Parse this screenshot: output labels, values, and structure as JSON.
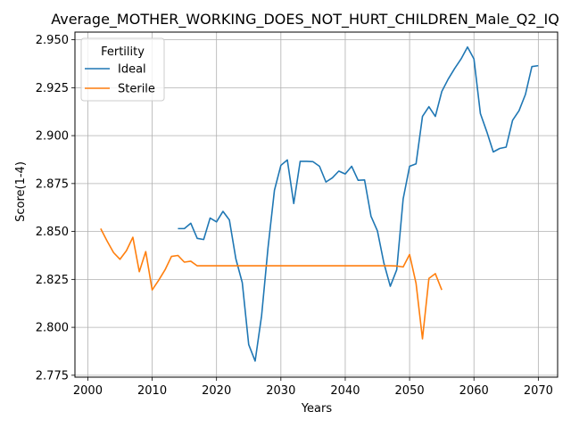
{
  "chart_data": {
    "type": "line",
    "title": "Average_MOTHER_WORKING_DOES_NOT_HURT_CHILDREN_Male_Q2_IQ",
    "xlabel": "Years",
    "ylabel": "Score(1-4)",
    "xlim": [
      1998,
      2073
    ],
    "ylim": [
      2.774,
      2.954
    ],
    "xticks": [
      2000,
      2010,
      2020,
      2030,
      2040,
      2050,
      2060,
      2070
    ],
    "yticks": [
      2.775,
      2.8,
      2.825,
      2.85,
      2.875,
      2.9,
      2.925,
      2.95
    ],
    "xtick_labels": [
      "2000",
      "2010",
      "2020",
      "2030",
      "2040",
      "2050",
      "2060",
      "2070"
    ],
    "ytick_labels": [
      "2.775",
      "2.800",
      "2.825",
      "2.850",
      "2.875",
      "2.900",
      "2.925",
      "2.950"
    ],
    "grid": true,
    "legend": {
      "title": "Fertility",
      "placement": "top-left"
    },
    "series": [
      {
        "name": "Ideal",
        "color": "#1f77b4",
        "x": [
          2014,
          2015,
          2016,
          2017,
          2018,
          2019,
          2020,
          2021,
          2022,
          2023,
          2024,
          2025,
          2026,
          2027,
          2028,
          2029,
          2030,
          2031,
          2032,
          2033,
          2034,
          2035,
          2036,
          2037,
          2038,
          2039,
          2040,
          2041,
          2042,
          2043,
          2044,
          2045,
          2046,
          2047,
          2048,
          2049,
          2050,
          2051,
          2052,
          2053,
          2054,
          2055,
          2056,
          2057,
          2058,
          2059,
          2060,
          2061,
          2062,
          2063,
          2064,
          2065,
          2066,
          2067,
          2068,
          2069,
          2070
        ],
        "values": [
          2.8515,
          2.8515,
          2.8543,
          2.8464,
          2.8458,
          2.857,
          2.855,
          2.8605,
          2.856,
          2.8358,
          2.8233,
          2.791,
          2.7824,
          2.806,
          2.8415,
          2.8715,
          2.8845,
          2.8873,
          2.8646,
          2.8866,
          2.8866,
          2.8864,
          2.884,
          2.8758,
          2.878,
          2.8815,
          2.88,
          2.884,
          2.8767,
          2.8769,
          2.858,
          2.8503,
          2.8336,
          2.8214,
          2.83,
          2.867,
          2.884,
          2.8853,
          2.91,
          2.9151,
          2.91,
          2.923,
          2.9295,
          2.935,
          2.94,
          2.9462,
          2.94,
          2.9115,
          2.902,
          2.8915,
          2.8933,
          2.894,
          2.908,
          2.913,
          2.9215,
          2.936,
          2.9365
        ]
      },
      {
        "name": "Sterile",
        "color": "#ff7f0e",
        "x": [
          2002,
          2003,
          2004,
          2005,
          2006,
          2007,
          2008,
          2009,
          2010,
          2011,
          2012,
          2013,
          2014,
          2015,
          2016,
          2017,
          2018,
          2019,
          2020,
          2021,
          2022,
          2023,
          2024,
          2025,
          2026,
          2027,
          2028,
          2029,
          2030,
          2031,
          2032,
          2033,
          2034,
          2035,
          2036,
          2037,
          2038,
          2039,
          2040,
          2041,
          2042,
          2043,
          2044,
          2045,
          2046,
          2047,
          2048,
          2049,
          2050,
          2051,
          2052,
          2053,
          2054,
          2055
        ],
        "values": [
          2.8515,
          2.845,
          2.839,
          2.8355,
          2.84,
          2.847,
          2.829,
          2.8395,
          2.8195,
          2.8245,
          2.83,
          2.837,
          2.8375,
          2.834,
          2.8345,
          2.8321,
          2.8321,
          2.8321,
          2.8321,
          2.8321,
          2.8321,
          2.8321,
          2.8321,
          2.8321,
          2.8321,
          2.8321,
          2.8321,
          2.8321,
          2.8321,
          2.8321,
          2.8321,
          2.8321,
          2.8321,
          2.8321,
          2.8321,
          2.8321,
          2.8321,
          2.8321,
          2.8321,
          2.8321,
          2.8321,
          2.8321,
          2.8321,
          2.8321,
          2.8321,
          2.8321,
          2.832,
          2.8315,
          2.838,
          2.823,
          2.794,
          2.8255,
          2.828,
          2.8195
        ]
      }
    ]
  }
}
